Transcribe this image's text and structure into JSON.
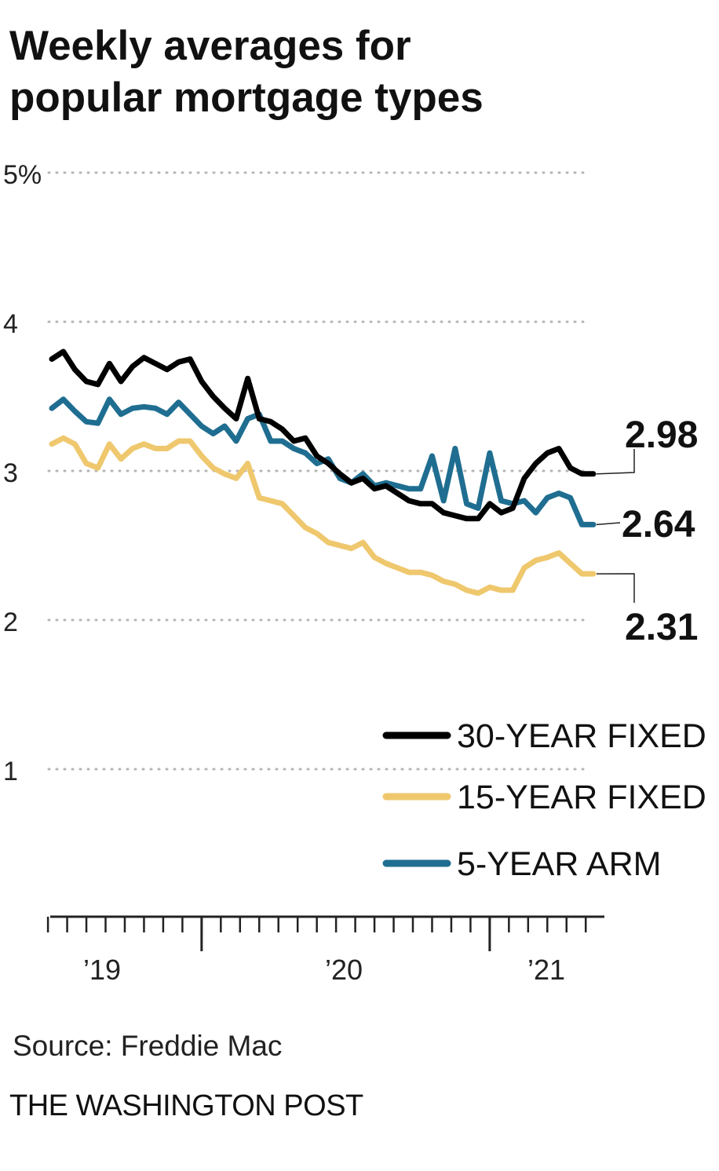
{
  "title": {
    "line1": "Weekly averages for",
    "line2": "popular mortgage types"
  },
  "source": "Source: Freddie Mac",
  "credit": "THE WASHINGTON POST",
  "colors": {
    "thirty_year": "#000000",
    "fifteen_year": "#efc86e",
    "five_year_arm": "#1f6e91",
    "grid": "#b5b5b5",
    "axis": "#222222"
  },
  "chart_data": {
    "type": "line",
    "title": "Weekly averages for popular mortgage types",
    "xlabel": "",
    "ylabel": "",
    "ylim": [
      0,
      5
    ],
    "xlim": [
      "2018-11",
      "2021-03"
    ],
    "y_ticks": [
      {
        "value": 5,
        "label": "5%"
      },
      {
        "value": 4,
        "label": "4"
      },
      {
        "value": 3,
        "label": "3"
      },
      {
        "value": 2,
        "label": "2"
      },
      {
        "value": 1,
        "label": "1"
      }
    ],
    "x_ticks": [
      {
        "value": 2019.0,
        "label": "’19"
      },
      {
        "value": 2020.0,
        "label": "’20"
      },
      {
        "value": 2021.0,
        "label": "’21"
      }
    ],
    "grid": "horizontal dotted",
    "legend_position": "bottom-right",
    "series": [
      {
        "name": "30-YEAR FIXED",
        "key": "thirty_year",
        "end_label": "2.98",
        "x": [
          2018.85,
          2018.9,
          2018.95,
          2019.0,
          2019.05,
          2019.1,
          2019.15,
          2019.2,
          2019.25,
          2019.3,
          2019.35,
          2019.4,
          2019.45,
          2019.5,
          2019.55,
          2019.6,
          2019.65,
          2019.7,
          2019.75,
          2019.8,
          2019.85,
          2019.9,
          2019.95,
          2020.0,
          2020.05,
          2020.1,
          2020.15,
          2020.2,
          2020.25,
          2020.3,
          2020.35,
          2020.4,
          2020.45,
          2020.5,
          2020.55,
          2020.6,
          2020.65,
          2020.7,
          2020.75,
          2020.8,
          2020.85,
          2020.9,
          2020.95,
          2021.0,
          2021.05,
          2021.1,
          2021.15,
          2021.2
        ],
        "values": [
          3.75,
          3.8,
          3.68,
          3.6,
          3.58,
          3.72,
          3.6,
          3.7,
          3.76,
          3.72,
          3.68,
          3.73,
          3.75,
          3.6,
          3.5,
          3.42,
          3.35,
          3.62,
          3.35,
          3.33,
          3.28,
          3.2,
          3.22,
          3.1,
          3.05,
          2.98,
          2.92,
          2.95,
          2.88,
          2.9,
          2.85,
          2.8,
          2.78,
          2.78,
          2.72,
          2.7,
          2.68,
          2.68,
          2.78,
          2.72,
          2.75,
          2.95,
          3.05,
          3.12,
          3.15,
          3.02,
          2.98,
          2.98
        ]
      },
      {
        "name": "15-YEAR FIXED",
        "key": "fifteen_year",
        "end_label": "2.31",
        "x": [
          2018.85,
          2018.9,
          2018.95,
          2019.0,
          2019.05,
          2019.1,
          2019.15,
          2019.2,
          2019.25,
          2019.3,
          2019.35,
          2019.4,
          2019.45,
          2019.5,
          2019.55,
          2019.6,
          2019.65,
          2019.7,
          2019.75,
          2019.8,
          2019.85,
          2019.9,
          2019.95,
          2020.0,
          2020.05,
          2020.1,
          2020.15,
          2020.2,
          2020.25,
          2020.3,
          2020.35,
          2020.4,
          2020.45,
          2020.5,
          2020.55,
          2020.6,
          2020.65,
          2020.7,
          2020.75,
          2020.8,
          2020.85,
          2020.9,
          2020.95,
          2021.0,
          2021.05,
          2021.1,
          2021.15,
          2021.2
        ],
        "values": [
          3.18,
          3.22,
          3.18,
          3.05,
          3.02,
          3.18,
          3.08,
          3.15,
          3.18,
          3.15,
          3.15,
          3.2,
          3.2,
          3.1,
          3.02,
          2.98,
          2.95,
          3.05,
          2.82,
          2.8,
          2.78,
          2.7,
          2.62,
          2.58,
          2.52,
          2.5,
          2.48,
          2.52,
          2.42,
          2.38,
          2.35,
          2.32,
          2.32,
          2.3,
          2.26,
          2.24,
          2.2,
          2.18,
          2.22,
          2.2,
          2.2,
          2.35,
          2.4,
          2.42,
          2.45,
          2.38,
          2.31,
          2.31
        ]
      },
      {
        "name": "5-YEAR ARM",
        "key": "five_year_arm",
        "end_label": "2.64",
        "x": [
          2018.85,
          2018.9,
          2018.95,
          2019.0,
          2019.05,
          2019.1,
          2019.15,
          2019.2,
          2019.25,
          2019.3,
          2019.35,
          2019.4,
          2019.45,
          2019.5,
          2019.55,
          2019.6,
          2019.65,
          2019.7,
          2019.75,
          2019.8,
          2019.85,
          2019.9,
          2019.95,
          2020.0,
          2020.05,
          2020.1,
          2020.15,
          2020.2,
          2020.25,
          2020.3,
          2020.35,
          2020.4,
          2020.45,
          2020.5,
          2020.55,
          2020.6,
          2020.65,
          2020.7,
          2020.75,
          2020.8,
          2020.85,
          2020.9,
          2020.95,
          2021.0,
          2021.05,
          2021.1,
          2021.15,
          2021.2
        ],
        "values": [
          3.42,
          3.48,
          3.4,
          3.33,
          3.32,
          3.48,
          3.38,
          3.42,
          3.43,
          3.42,
          3.38,
          3.46,
          3.38,
          3.3,
          3.25,
          3.3,
          3.2,
          3.35,
          3.38,
          3.2,
          3.2,
          3.15,
          3.12,
          3.05,
          3.08,
          2.95,
          2.92,
          2.98,
          2.9,
          2.92,
          2.9,
          2.88,
          2.88,
          3.1,
          2.8,
          3.15,
          2.78,
          2.75,
          3.12,
          2.8,
          2.78,
          2.8,
          2.72,
          2.82,
          2.85,
          2.82,
          2.64,
          2.64
        ]
      }
    ]
  }
}
